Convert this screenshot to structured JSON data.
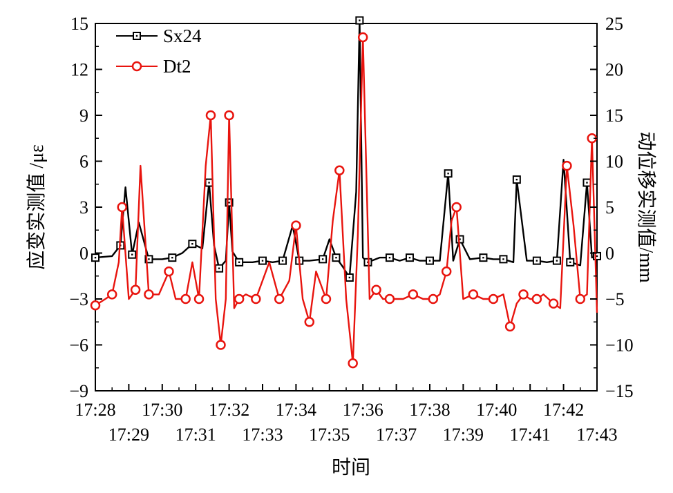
{
  "chart_data": {
    "type": "line",
    "title": "",
    "xlabel": "时间",
    "ylabel_left": "应变实测值 /με",
    "ylabel_right": "动位移实测值/mm",
    "x_range": [
      "17:28",
      "17:43"
    ],
    "x_ticks_top": [
      "17:28",
      "17:30",
      "17:32",
      "17:34",
      "17:36",
      "17:38",
      "17:40",
      "17:42"
    ],
    "x_ticks_bottom": [
      "17:29",
      "17:31",
      "17:33",
      "17:35",
      "17:37",
      "17:39",
      "17:41",
      "17:43"
    ],
    "y_left": {
      "min": -9,
      "max": 15,
      "ticks": [
        "−9",
        "−6",
        "−3",
        "0",
        "3",
        "6",
        "9",
        "12",
        "15"
      ]
    },
    "y_right": {
      "min": -15,
      "max": 25,
      "ticks": [
        "−15",
        "−10",
        "−5",
        "0",
        "5",
        "10",
        "15",
        "20",
        "25"
      ]
    },
    "grid": false,
    "legend_position": "top-left",
    "series": [
      {
        "name": "Sx24",
        "axis": "left",
        "color": "#000000",
        "marker": "square-with-dot",
        "x": [
          "17:28.0",
          "17:28.5",
          "17:28.75",
          "17:28.9",
          "17:29.1",
          "17:29.3",
          "17:29.6",
          "17:30.0",
          "17:30.3",
          "17:30.6",
          "17:30.9",
          "17:31.2",
          "17:31.4",
          "17:31.55",
          "17:31.7",
          "17:31.9",
          "17:32.0",
          "17:32.1",
          "17:32.3",
          "17:32.7",
          "17:33.0",
          "17:33.3",
          "17:33.6",
          "17:33.9",
          "17:34.1",
          "17:34.4",
          "17:34.8",
          "17:35.0",
          "17:35.2",
          "17:35.4",
          "17:35.6",
          "17:35.8",
          "17:35.9",
          "17:36.0",
          "17:36.15",
          "17:36.5",
          "17:36.8",
          "17:37.1",
          "17:37.4",
          "17:37.7",
          "17:38.0",
          "17:38.3",
          "17:38.55",
          "17:38.7",
          "17:38.9",
          "17:39.2",
          "17:39.6",
          "17:39.9",
          "17:40.2",
          "17:40.5",
          "17:40.6",
          "17:40.9",
          "17:41.2",
          "17:41.5",
          "17:41.8",
          "17:42.0",
          "17:42.2",
          "17:42.5",
          "17:42.7",
          "17:42.85",
          "17:43.0"
        ],
        "values": [
          -0.3,
          -0.2,
          0.5,
          4.3,
          -0.1,
          2.0,
          -0.4,
          -0.4,
          -0.3,
          0.0,
          0.6,
          0.3,
          4.6,
          0.5,
          -1.0,
          -0.5,
          3.3,
          0.1,
          -0.6,
          -0.6,
          -0.5,
          -0.6,
          -0.5,
          1.8,
          -0.5,
          -0.5,
          -0.4,
          0.9,
          -0.3,
          -0.9,
          -1.6,
          4.0,
          15.2,
          -0.3,
          -0.6,
          -0.3,
          -0.3,
          -0.5,
          -0.3,
          -0.5,
          -0.5,
          -0.5,
          5.2,
          -0.5,
          0.9,
          -0.4,
          -0.3,
          -0.4,
          -0.4,
          -0.6,
          4.8,
          -0.5,
          -0.5,
          -0.6,
          -0.5,
          6.1,
          -0.6,
          -0.8,
          4.6,
          -0.3,
          -0.2
        ]
      },
      {
        "name": "Dt2",
        "axis": "right",
        "color": "#e8140e",
        "marker": "circle",
        "x": [
          "17:28.0",
          "17:28.3",
          "17:28.5",
          "17:28.7",
          "17:28.8",
          "17:29.0",
          "17:29.2",
          "17:29.35",
          "17:29.6",
          "17:29.9",
          "17:30.2",
          "17:30.4",
          "17:30.7",
          "17:30.9",
          "17:31.1",
          "17:31.3",
          "17:31.45",
          "17:31.6",
          "17:31.75",
          "17:31.9",
          "17:32.0",
          "17:32.15",
          "17:32.3",
          "17:32.5",
          "17:32.8",
          "17:33.2",
          "17:33.5",
          "17:33.8",
          "17:34.0",
          "17:34.2",
          "17:34.4",
          "17:34.6",
          "17:34.9",
          "17:35.1",
          "17:35.3",
          "17:35.5",
          "17:35.7",
          "17:35.85",
          "17:36.0",
          "17:36.2",
          "17:36.4",
          "17:36.6",
          "17:36.8",
          "17:37.2",
          "17:37.5",
          "17:37.8",
          "17:38.1",
          "17:38.3",
          "17:38.5",
          "17:38.65",
          "17:38.8",
          "17:39.0",
          "17:39.3",
          "17:39.6",
          "17:39.9",
          "17:40.2",
          "17:40.4",
          "17:40.6",
          "17:40.8",
          "17:41.0",
          "17:41.2",
          "17:41.4",
          "17:41.7",
          "17:41.9",
          "17:42.1",
          "17:42.3",
          "17:42.5",
          "17:42.7",
          "17:42.85",
          "17:43.0"
        ],
        "values": [
          -5.7,
          -5.0,
          -4.5,
          -1.0,
          5.0,
          -5.0,
          -4.0,
          9.5,
          -4.5,
          -4.5,
          -2.0,
          -5.0,
          -5.0,
          -1.0,
          -5.0,
          9.5,
          15.0,
          -5.0,
          -10.0,
          -5.0,
          15.0,
          -6.0,
          -5.0,
          -4.5,
          -5.0,
          -1.0,
          -5.0,
          -3.0,
          3.0,
          -5.0,
          -7.5,
          -2.0,
          -5.0,
          3.5,
          9.0,
          -5.0,
          -12.0,
          2.0,
          23.5,
          -5.0,
          -4.0,
          -5.0,
          -5.0,
          -5.0,
          -4.5,
          -5.0,
          -5.0,
          -4.5,
          -2.0,
          3.5,
          5.0,
          -5.0,
          -4.5,
          -5.0,
          -5.0,
          -4.5,
          -8.0,
          -5.5,
          -4.5,
          -5.0,
          -5.0,
          -4.5,
          -5.5,
          -6.0,
          9.5,
          3.0,
          -5.0,
          -4.5,
          12.5,
          -6.5
        ]
      }
    ]
  }
}
